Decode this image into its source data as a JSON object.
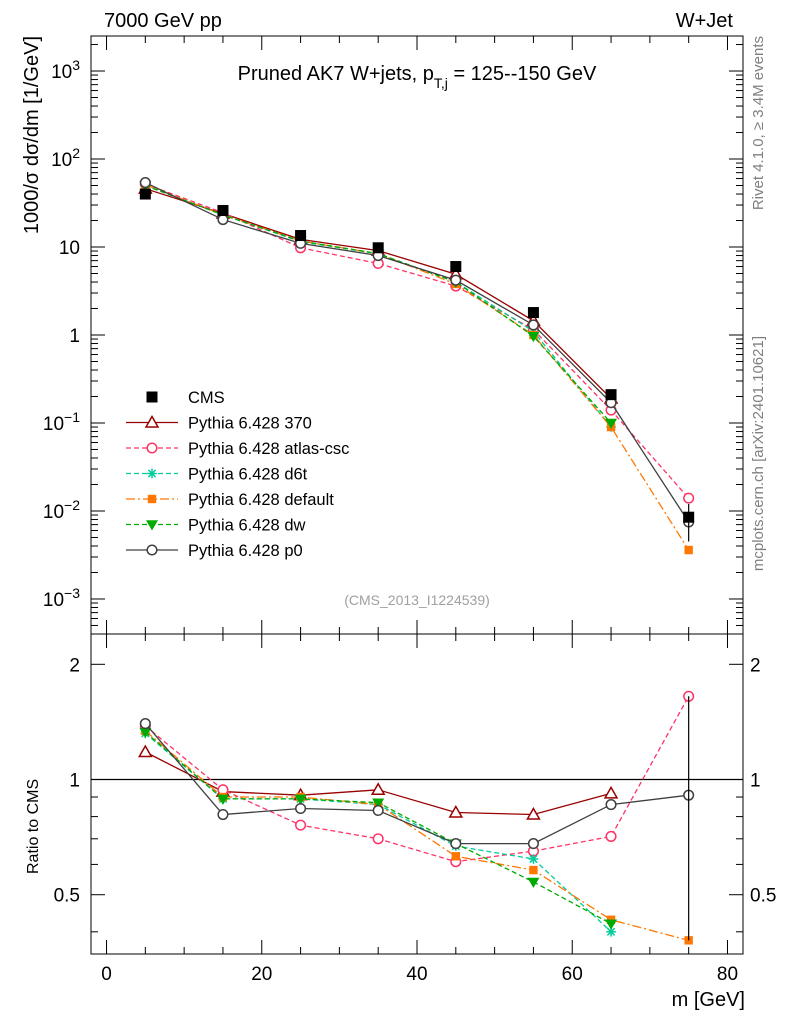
{
  "header": {
    "left": "7000 GeV pp",
    "right": "W+Jet"
  },
  "side": {
    "rivet": "Rivet 4.1.0, ≥ 3.4M events",
    "mcplots": "mcplots.cern.ch [arXiv:2401.10621]"
  },
  "chart_data": {
    "type": "line",
    "title_main": "Pruned AK7 W+jets, p",
    "title_sub": "T,j",
    "title_tail": " = 125--150 GeV",
    "analysis_id": "(CMS_2013_I1224539)",
    "xlabel": "m [GeV]",
    "ylabel": "1000/σ  dσ/dm [1/GeV]",
    "ratio_ylabel": "Ratio to CMS",
    "xlim": [
      -2,
      82
    ],
    "ylim": [
      0.0004,
      2500
    ],
    "ratio_ylim": [
      0.35,
      2.4
    ],
    "x": [
      5,
      15,
      25,
      35,
      45,
      55,
      65,
      75
    ],
    "x_ticks": [
      "0",
      "20",
      "40",
      "60",
      "80"
    ],
    "y_ticks": [
      {
        "base": "10",
        "exp": "−3",
        "v": 0.001
      },
      {
        "base": "10",
        "exp": "−2",
        "v": 0.01
      },
      {
        "base": "10",
        "exp": "−1",
        "v": 0.1
      },
      {
        "base": "1",
        "exp": "",
        "v": 1
      },
      {
        "base": "10",
        "exp": "",
        "v": 10
      },
      {
        "base": "10",
        "exp": "2",
        "v": 100
      },
      {
        "base": "10",
        "exp": "3",
        "v": 1000
      }
    ],
    "ratio_ticks": [
      "0.5",
      "1",
      "2"
    ],
    "reference": {
      "name": "CMS",
      "values": [
        40,
        26,
        13.5,
        9.8,
        6.0,
        1.8,
        0.21,
        0.0085
      ]
    },
    "series": [
      {
        "name": "Pythia 6.428 370",
        "color": "#990000",
        "dash": "",
        "marker": "triangle-open",
        "values": [
          46,
          24,
          12.2,
          9.1,
          4.9,
          1.45,
          0.19,
          null
        ],
        "ratio": [
          1.18,
          0.93,
          0.91,
          0.94,
          0.82,
          0.81,
          0.92,
          null
        ]
      },
      {
        "name": "Pythia 6.428 atlas-csc",
        "color": "#ff3366",
        "dash": "5,3",
        "marker": "circle-open",
        "values": [
          52,
          24.5,
          9.8,
          6.5,
          3.6,
          1.15,
          0.14,
          0.014
        ],
        "ratio": [
          1.38,
          0.94,
          0.76,
          0.7,
          0.61,
          0.65,
          0.71,
          1.65
        ]
      },
      {
        "name": "Pythia 6.428 d6t",
        "color": "#00cc99",
        "dash": "5,3",
        "marker": "star",
        "values": [
          50,
          23.2,
          11.5,
          8.4,
          4.0,
          1.1,
          0.09,
          null
        ],
        "ratio": [
          1.32,
          0.89,
          0.89,
          0.86,
          0.67,
          0.62,
          0.4,
          null
        ]
      },
      {
        "name": "Pythia 6.428 default",
        "color": "#ff7700",
        "dash": "9,3,2,3",
        "marker": "square-filled",
        "values": [
          51,
          23.3,
          11.7,
          8.4,
          3.8,
          1.0,
          0.09,
          0.0036
        ],
        "ratio": [
          1.34,
          0.9,
          0.9,
          0.86,
          0.63,
          0.58,
          0.43,
          0.38
        ]
      },
      {
        "name": "Pythia 6.428 dw",
        "color": "#00aa00",
        "dash": "5,3",
        "marker": "triangle-down-filled",
        "values": [
          50,
          23.2,
          11.7,
          8.4,
          4.0,
          0.97,
          0.1,
          null
        ],
        "ratio": [
          1.33,
          0.89,
          0.89,
          0.87,
          0.68,
          0.54,
          0.42,
          null
        ]
      },
      {
        "name": "Pythia 6.428 p0",
        "color": "#404040",
        "dash": "",
        "marker": "circle-open",
        "values": [
          54,
          20.5,
          11.0,
          8.0,
          4.2,
          1.3,
          0.17,
          0.0075
        ],
        "ratio": [
          1.4,
          0.81,
          0.84,
          0.83,
          0.68,
          0.68,
          0.86,
          0.91
        ]
      }
    ]
  }
}
